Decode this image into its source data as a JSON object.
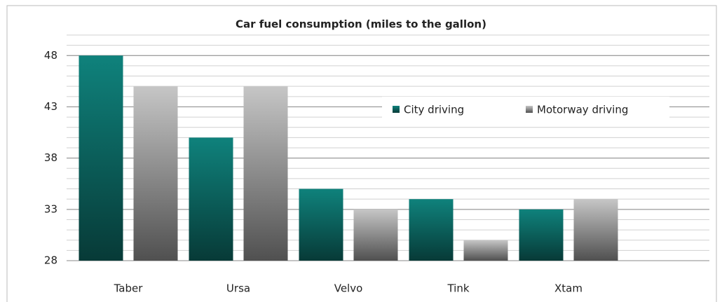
{
  "chart_data": {
    "type": "bar",
    "title": "Car fuel consumption (miles to the gallon)",
    "categories": [
      "Taber",
      "Ursa",
      "Velvo",
      "Tink",
      "Xtam"
    ],
    "series": [
      {
        "name": "City driving",
        "color": "#0e7f7a",
        "values": [
          48,
          40,
          35,
          34,
          33
        ]
      },
      {
        "name": "Motorway driving",
        "color": "#a8a8a8",
        "values": [
          45,
          45,
          33,
          30,
          34
        ]
      }
    ],
    "ylim": [
      28,
      50
    ],
    "yticks": [
      28,
      33,
      38,
      43,
      48
    ],
    "grid": true,
    "minor_grid_step": 1,
    "legend": "right"
  }
}
